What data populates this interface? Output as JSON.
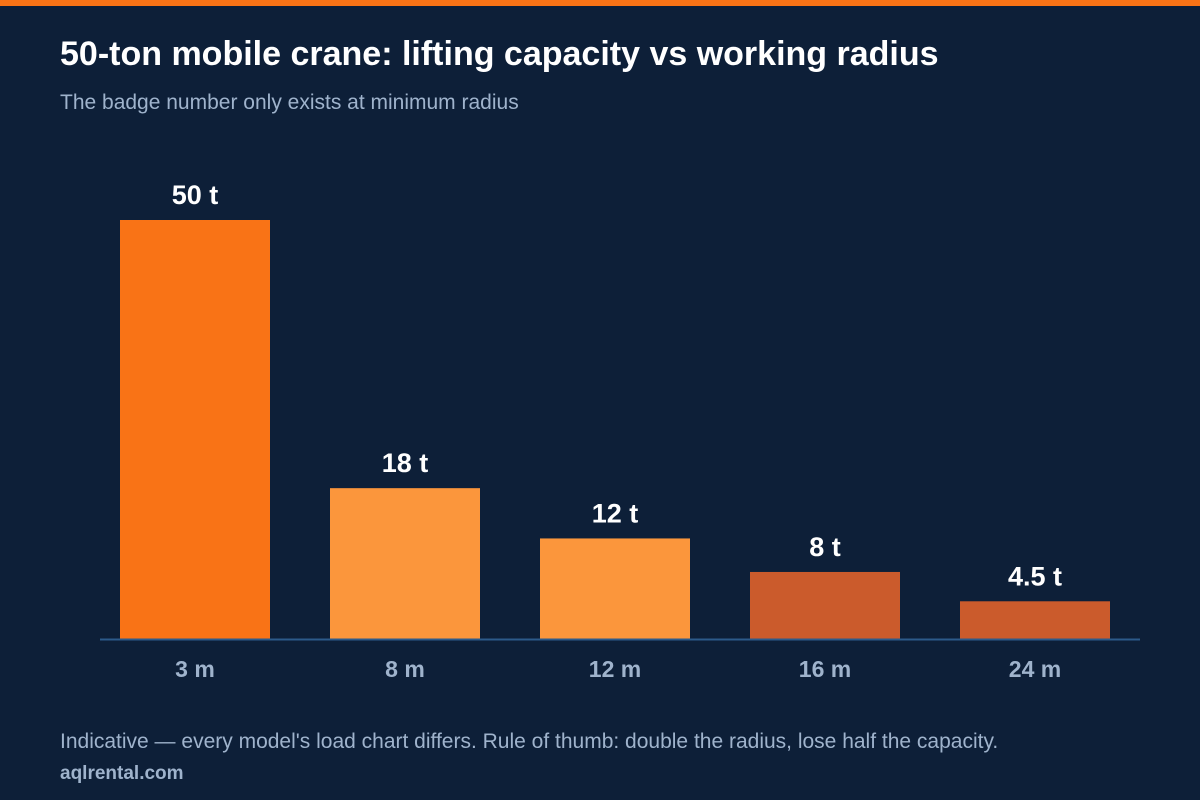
{
  "header": {
    "title": "50-ton mobile crane: lifting capacity vs working radius",
    "subtitle": "The badge number only exists at minimum radius"
  },
  "footer": {
    "note": "Indicative — every model's load chart differs. Rule of thumb: double the radius, lose half the capacity.",
    "source": "aqlrental.com"
  },
  "colors": {
    "background": "#0d1f38",
    "accent": "#f97316",
    "bar_light": "#fb963c",
    "bar_dark": "#cb5b2c",
    "axis": "#2c5a8a"
  },
  "chart_data": {
    "type": "bar",
    "title": "50-ton mobile crane: lifting capacity vs working radius",
    "subtitle": "The badge number only exists at minimum radius",
    "categories": [
      "3 m",
      "8 m",
      "12 m",
      "16 m",
      "24 m"
    ],
    "values": [
      50,
      18,
      12,
      8,
      4.5
    ],
    "value_labels": [
      "50 t",
      "18 t",
      "12 t",
      "8 t",
      "4.5 t"
    ],
    "bar_colors": [
      "#f97316",
      "#fb963c",
      "#fb963c",
      "#cb5b2c",
      "#cb5b2c"
    ],
    "ylim": [
      0,
      50
    ],
    "grid": false,
    "legend": "none"
  }
}
